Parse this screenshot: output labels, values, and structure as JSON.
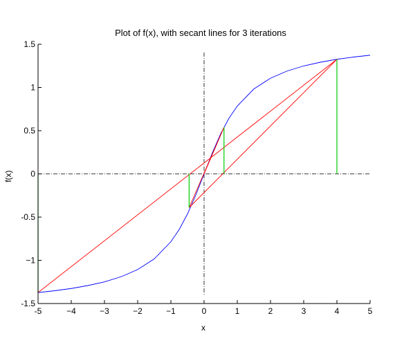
{
  "chart_data": {
    "type": "line",
    "title": "Plot of f(x), with secant lines for 3 iterations",
    "xlabel": "x",
    "ylabel": "f(x)",
    "xlim": [
      -5,
      5
    ],
    "ylim": [
      -1.5,
      1.5
    ],
    "xticks": [
      -5,
      -4,
      -3,
      -2,
      -1,
      0,
      1,
      2,
      3,
      4,
      5
    ],
    "xtick_labels": [
      "-5",
      "−4",
      "−3",
      "−2",
      "−1",
      "0",
      "1",
      "2",
      "3",
      "4",
      "5"
    ],
    "yticks": [
      -1.5,
      -1,
      -0.5,
      0,
      0.5,
      1,
      1.5
    ],
    "ytick_labels": [
      "-1.5",
      "−1",
      "-0.5",
      "0",
      "0.5",
      "1",
      "1.5"
    ],
    "grid": false,
    "curve": {
      "color": "#0000ff",
      "x": [
        -5,
        -4.5,
        -4,
        -3.5,
        -3,
        -2.5,
        -2,
        -1.5,
        -1,
        -0.75,
        -0.5,
        -0.25,
        0,
        0.25,
        0.5,
        0.75,
        1,
        1.5,
        2,
        2.5,
        3,
        3.5,
        4,
        4.5,
        5
      ],
      "y": [
        -1.373,
        -1.352,
        -1.326,
        -1.292,
        -1.249,
        -1.19,
        -1.107,
        -0.983,
        -0.785,
        -0.644,
        -0.464,
        -0.245,
        0,
        0.245,
        0.464,
        0.644,
        0.785,
        0.983,
        1.107,
        1.19,
        1.249,
        1.292,
        1.326,
        1.352,
        1.373
      ]
    },
    "secant_lines": {
      "color": "#ff0000",
      "segments": [
        {
          "x": [
            -5,
            4
          ],
          "y": [
            -1.373,
            1.326
          ]
        },
        {
          "x": [
            -0.45,
            4
          ],
          "y": [
            -0.39,
            1.326
          ]
        },
        {
          "x": [
            -0.45,
            0.6
          ],
          "y": [
            -0.39,
            0.54
          ]
        },
        {
          "x": [
            0,
            0.6
          ],
          "y": [
            0,
            0.54
          ]
        }
      ]
    },
    "verticals": {
      "color": "#00cc00",
      "segments": [
        {
          "x": -5,
          "y": [
            0,
            -1.373
          ]
        },
        {
          "x": 4,
          "y": [
            0,
            1.326
          ]
        },
        {
          "x": -0.45,
          "y": [
            0,
            -0.39
          ]
        },
        {
          "x": 0.6,
          "y": [
            0,
            0.54
          ]
        }
      ]
    },
    "reference_axes": {
      "color": "#000000",
      "style": "dash-dot",
      "x_axis_at_y": 0,
      "y_axis_at_x": 0
    }
  }
}
